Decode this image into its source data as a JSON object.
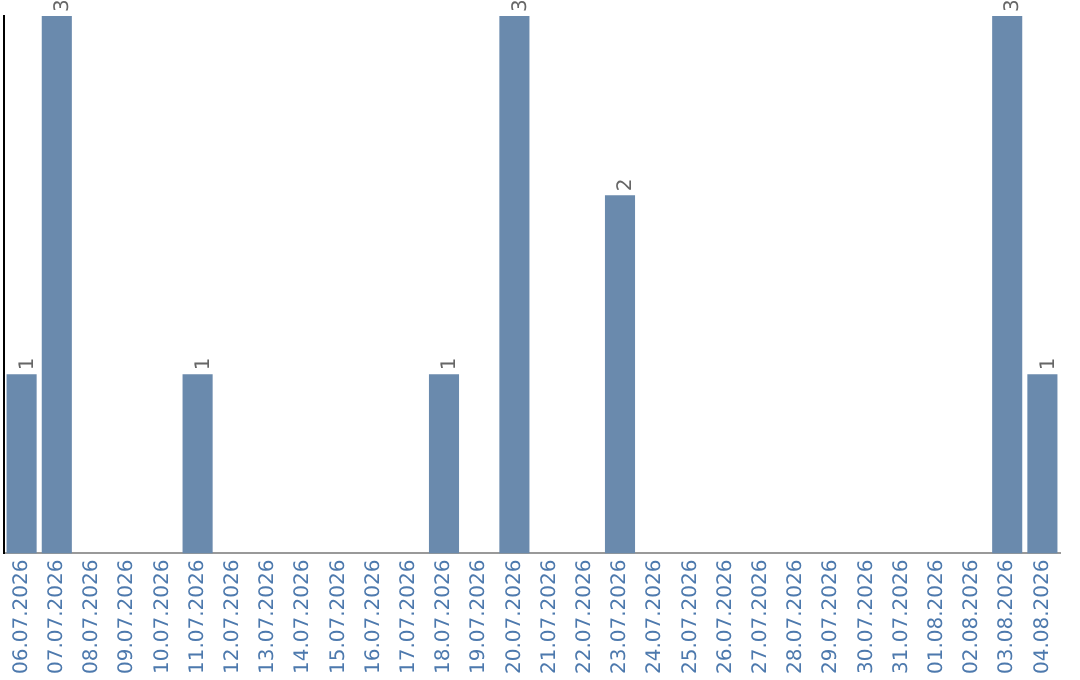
{
  "chart_data": {
    "type": "bar",
    "categories": [
      "06.07.2026",
      "07.07.2026",
      "08.07.2026",
      "09.07.2026",
      "10.07.2026",
      "11.07.2026",
      "12.07.2026",
      "13.07.2026",
      "14.07.2026",
      "15.07.2026",
      "16.07.2026",
      "17.07.2026",
      "18.07.2026",
      "19.07.2026",
      "20.07.2026",
      "21.07.2026",
      "22.07.2026",
      "23.07.2026",
      "24.07.2026",
      "25.07.2026",
      "26.07.2026",
      "27.07.2026",
      "28.07.2026",
      "29.07.2026",
      "30.07.2026",
      "31.07.2026",
      "01.08.2026",
      "02.08.2026",
      "03.08.2026",
      "04.08.2026"
    ],
    "values": [
      1,
      3,
      0,
      0,
      0,
      1,
      0,
      0,
      0,
      0,
      0,
      0,
      1,
      0,
      3,
      0,
      0,
      2,
      0,
      0,
      0,
      0,
      0,
      0,
      0,
      0,
      0,
      0,
      3,
      1
    ],
    "value_labels": [
      "1",
      "3",
      null,
      null,
      null,
      "1",
      null,
      null,
      null,
      null,
      null,
      null,
      "1",
      null,
      "3",
      null,
      null,
      "2",
      null,
      null,
      null,
      null,
      null,
      null,
      null,
      null,
      null,
      null,
      "3",
      "1"
    ],
    "color": "#6a8aad",
    "ylim": [
      0,
      3
    ],
    "tick_labels": "x",
    "grid": false,
    "legend": false
  }
}
